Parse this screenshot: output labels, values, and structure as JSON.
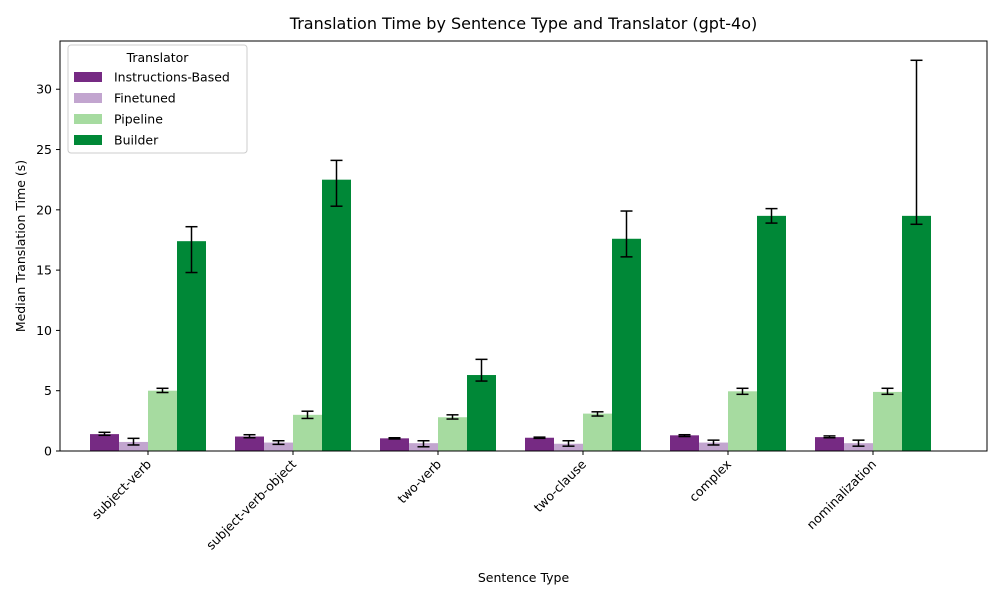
{
  "chart_data": {
    "type": "bar",
    "title": "Translation Time by Sentence Type and Translator (gpt-4o)",
    "xlabel": "Sentence Type",
    "ylabel": "Median Translation Time (s)",
    "ylim": [
      0,
      34
    ],
    "yticks": [
      0,
      5,
      10,
      15,
      20,
      25,
      30
    ],
    "grid": false,
    "legend": {
      "title": "Translator",
      "placement": "top-left"
    },
    "categories": [
      "subject-verb",
      "subject-verb-object",
      "two-verb",
      "two-clause",
      "complex",
      "nominalization"
    ],
    "series": [
      {
        "name": "Instructions-Based",
        "color": "#762a83",
        "values": [
          1.4,
          1.2,
          1.05,
          1.1,
          1.3,
          1.15
        ],
        "err_low": [
          1.3,
          1.1,
          1.0,
          1.05,
          1.2,
          1.1
        ],
        "err_high": [
          1.55,
          1.35,
          1.1,
          1.15,
          1.35,
          1.25
        ]
      },
      {
        "name": "Finetuned",
        "color": "#c2a5cf",
        "values": [
          0.75,
          0.7,
          0.65,
          0.6,
          0.7,
          0.65
        ],
        "err_low": [
          0.5,
          0.55,
          0.35,
          0.4,
          0.5,
          0.4
        ],
        "err_high": [
          1.05,
          0.85,
          0.85,
          0.85,
          0.9,
          0.9
        ]
      },
      {
        "name": "Pipeline",
        "color": "#a6dba0",
        "values": [
          5.0,
          3.0,
          2.8,
          3.1,
          4.95,
          4.9
        ],
        "err_low": [
          4.85,
          2.7,
          2.65,
          2.9,
          4.7,
          4.7
        ],
        "err_high": [
          5.2,
          3.3,
          3.0,
          3.25,
          5.2,
          5.2
        ]
      },
      {
        "name": "Builder",
        "color": "#008837",
        "values": [
          17.4,
          22.5,
          6.3,
          17.6,
          19.5,
          19.5
        ],
        "err_low": [
          14.8,
          20.3,
          5.8,
          16.1,
          18.9,
          18.8
        ],
        "err_high": [
          18.6,
          24.1,
          7.6,
          19.9,
          20.1,
          32.4
        ]
      }
    ]
  }
}
